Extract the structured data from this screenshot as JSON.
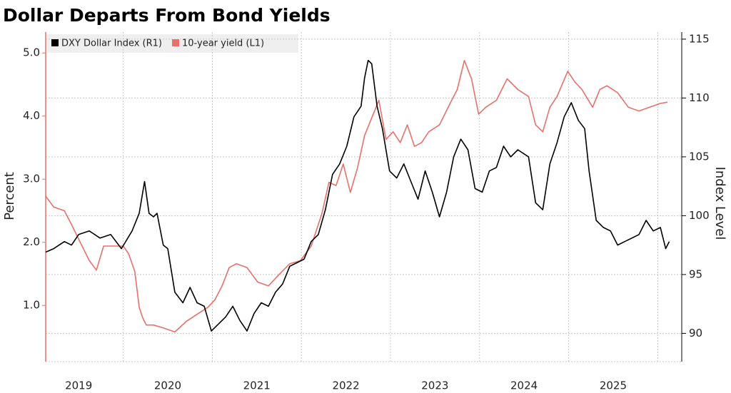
{
  "chart_data": {
    "type": "line",
    "title": "Dollar Departs From Bond Yields",
    "ylabel": "Percent",
    "y2label": "Index Level",
    "xlim": [
      2019.13,
      2026.27
    ],
    "xticks": [
      {
        "value": 2019.5,
        "label": "2019"
      },
      {
        "value": 2020.5,
        "label": "2020"
      },
      {
        "value": 2021.5,
        "label": "2021"
      },
      {
        "value": 2022.5,
        "label": "2022"
      },
      {
        "value": 2023.5,
        "label": "2023"
      },
      {
        "value": 2024.5,
        "label": "2024"
      },
      {
        "value": 2025.5,
        "label": "2025"
      }
    ],
    "x_gridlines": [
      2020,
      2021,
      2022,
      2023,
      2024,
      2025,
      2026
    ],
    "ylim": [
      0.11,
      5.33
    ],
    "yticks": [
      {
        "value": 1,
        "label": "1.0"
      },
      {
        "value": 2,
        "label": "2.0"
      },
      {
        "value": 3,
        "label": "3.0"
      },
      {
        "value": 4,
        "label": "4.0"
      },
      {
        "value": 5,
        "label": "5.0"
      }
    ],
    "y2lim": [
      87.6,
      115.6
    ],
    "y2ticks": [
      90,
      95,
      100,
      105,
      110,
      115
    ],
    "grid": true,
    "legend": "top-left",
    "series": [
      {
        "name": "DXY Dollar Index (R1)",
        "color": "#000000",
        "axis": "y2",
        "x": [
          2019.13,
          2019.22,
          2019.34,
          2019.42,
          2019.5,
          2019.62,
          2019.74,
          2019.86,
          2019.98,
          2020.1,
          2020.18,
          2020.24,
          2020.29,
          2020.34,
          2020.38,
          2020.45,
          2020.5,
          2020.58,
          2020.67,
          2020.75,
          2020.83,
          2020.91,
          2020.99,
          2021.07,
          2021.15,
          2021.23,
          2021.31,
          2021.39,
          2021.47,
          2021.55,
          2021.63,
          2021.71,
          2021.79,
          2021.87,
          2021.95,
          2022.03,
          2022.11,
          2022.19,
          2022.27,
          2022.35,
          2022.43,
          2022.51,
          2022.59,
          2022.67,
          2022.71,
          2022.75,
          2022.79,
          2022.85,
          2022.91,
          2022.99,
          2023.07,
          2023.15,
          2023.23,
          2023.31,
          2023.39,
          2023.47,
          2023.55,
          2023.63,
          2023.71,
          2023.79,
          2023.87,
          2023.95,
          2024.03,
          2024.11,
          2024.19,
          2024.27,
          2024.35,
          2024.43,
          2024.55,
          2024.63,
          2024.71,
          2024.79,
          2024.87,
          2024.95,
          2025.03,
          2025.11,
          2025.18,
          2025.23,
          2025.31,
          2025.39,
          2025.47,
          2025.55,
          2025.63,
          2025.71,
          2025.79,
          2025.87,
          2025.95,
          2026.03,
          2026.09,
          2026.13
        ],
        "values": [
          96.9,
          97.2,
          97.8,
          97.5,
          98.4,
          98.7,
          98.1,
          98.4,
          97.2,
          98.7,
          100.2,
          102.9,
          100.2,
          99.9,
          100.2,
          97.5,
          97.2,
          93.5,
          92.6,
          93.9,
          92.6,
          92.3,
          90.2,
          90.8,
          91.4,
          92.3,
          91.1,
          90.2,
          91.7,
          92.6,
          92.3,
          93.5,
          94.2,
          95.7,
          96.0,
          96.3,
          97.8,
          98.4,
          100.5,
          103.5,
          104.4,
          105.9,
          108.4,
          109.3,
          111.7,
          113.2,
          112.9,
          109.3,
          107.4,
          103.8,
          103.2,
          104.4,
          102.9,
          101.4,
          103.8,
          102.0,
          99.9,
          102.0,
          105.0,
          106.5,
          105.6,
          102.3,
          102.0,
          103.8,
          104.1,
          105.9,
          105.0,
          105.6,
          105.0,
          101.1,
          100.5,
          104.4,
          106.2,
          108.4,
          109.6,
          108.1,
          107.4,
          103.8,
          99.6,
          99.0,
          98.7,
          97.5,
          97.8,
          98.1,
          98.4,
          99.6,
          98.7,
          99.0,
          97.2,
          97.8
        ]
      },
      {
        "name": "10-year yield (L1)",
        "color": "#e8706a",
        "axis": "y",
        "x": [
          2019.13,
          2019.22,
          2019.34,
          2019.42,
          2019.5,
          2019.62,
          2019.7,
          2019.78,
          2019.9,
          2020.0,
          2020.06,
          2020.13,
          2020.18,
          2020.22,
          2020.26,
          2020.34,
          2020.46,
          2020.58,
          2020.71,
          2020.83,
          2020.95,
          2021.03,
          2021.11,
          2021.19,
          2021.27,
          2021.39,
          2021.51,
          2021.63,
          2021.75,
          2021.87,
          2021.99,
          2022.11,
          2022.23,
          2022.31,
          2022.39,
          2022.47,
          2022.55,
          2022.63,
          2022.71,
          2022.79,
          2022.87,
          2022.95,
          2023.03,
          2023.11,
          2023.19,
          2023.27,
          2023.35,
          2023.43,
          2023.55,
          2023.67,
          2023.75,
          2023.83,
          2023.91,
          2023.99,
          2024.07,
          2024.19,
          2024.31,
          2024.43,
          2024.55,
          2024.63,
          2024.71,
          2024.79,
          2024.87,
          2024.99,
          2025.07,
          2025.15,
          2025.27,
          2025.35,
          2025.43,
          2025.55,
          2025.67,
          2025.79,
          2025.91,
          2026.03,
          2026.11
        ],
        "values": [
          2.73,
          2.56,
          2.5,
          2.28,
          2.05,
          1.71,
          1.56,
          1.94,
          1.94,
          1.94,
          1.82,
          1.54,
          0.97,
          0.8,
          0.69,
          0.69,
          0.64,
          0.58,
          0.75,
          0.86,
          0.97,
          1.09,
          1.31,
          1.6,
          1.66,
          1.6,
          1.37,
          1.31,
          1.49,
          1.66,
          1.71,
          1.94,
          2.45,
          2.95,
          2.9,
          3.24,
          2.79,
          3.18,
          3.69,
          3.97,
          4.25,
          3.63,
          3.75,
          3.58,
          3.86,
          3.52,
          3.58,
          3.75,
          3.86,
          4.2,
          4.42,
          4.88,
          4.59,
          4.03,
          4.14,
          4.25,
          4.59,
          4.42,
          4.31,
          3.86,
          3.75,
          4.14,
          4.31,
          4.71,
          4.54,
          4.42,
          4.14,
          4.42,
          4.48,
          4.37,
          4.14,
          4.08,
          4.14,
          4.2,
          4.22
        ]
      }
    ]
  }
}
